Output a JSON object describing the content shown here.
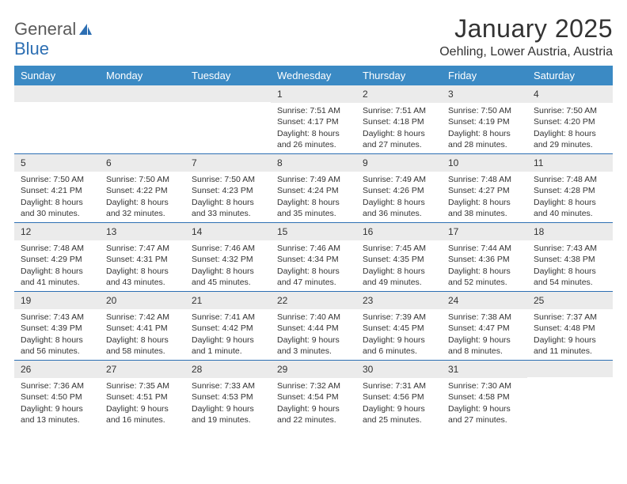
{
  "logo": {
    "text1": "General",
    "text2": "Blue"
  },
  "title": "January 2025",
  "subtitle": "Oehling, Lower Austria, Austria",
  "header_bg": "#3b8ac4",
  "divider_color": "#2d6fb3",
  "daynum_bg": "#ebebeb",
  "days": [
    "Sunday",
    "Monday",
    "Tuesday",
    "Wednesday",
    "Thursday",
    "Friday",
    "Saturday"
  ],
  "weeks": [
    [
      {
        "n": "",
        "sr": "",
        "ss": "",
        "d1": "",
        "d2": ""
      },
      {
        "n": "",
        "sr": "",
        "ss": "",
        "d1": "",
        "d2": ""
      },
      {
        "n": "",
        "sr": "",
        "ss": "",
        "d1": "",
        "d2": ""
      },
      {
        "n": "1",
        "sr": "Sunrise: 7:51 AM",
        "ss": "Sunset: 4:17 PM",
        "d1": "Daylight: 8 hours",
        "d2": "and 26 minutes."
      },
      {
        "n": "2",
        "sr": "Sunrise: 7:51 AM",
        "ss": "Sunset: 4:18 PM",
        "d1": "Daylight: 8 hours",
        "d2": "and 27 minutes."
      },
      {
        "n": "3",
        "sr": "Sunrise: 7:50 AM",
        "ss": "Sunset: 4:19 PM",
        "d1": "Daylight: 8 hours",
        "d2": "and 28 minutes."
      },
      {
        "n": "4",
        "sr": "Sunrise: 7:50 AM",
        "ss": "Sunset: 4:20 PM",
        "d1": "Daylight: 8 hours",
        "d2": "and 29 minutes."
      }
    ],
    [
      {
        "n": "5",
        "sr": "Sunrise: 7:50 AM",
        "ss": "Sunset: 4:21 PM",
        "d1": "Daylight: 8 hours",
        "d2": "and 30 minutes."
      },
      {
        "n": "6",
        "sr": "Sunrise: 7:50 AM",
        "ss": "Sunset: 4:22 PM",
        "d1": "Daylight: 8 hours",
        "d2": "and 32 minutes."
      },
      {
        "n": "7",
        "sr": "Sunrise: 7:50 AM",
        "ss": "Sunset: 4:23 PM",
        "d1": "Daylight: 8 hours",
        "d2": "and 33 minutes."
      },
      {
        "n": "8",
        "sr": "Sunrise: 7:49 AM",
        "ss": "Sunset: 4:24 PM",
        "d1": "Daylight: 8 hours",
        "d2": "and 35 minutes."
      },
      {
        "n": "9",
        "sr": "Sunrise: 7:49 AM",
        "ss": "Sunset: 4:26 PM",
        "d1": "Daylight: 8 hours",
        "d2": "and 36 minutes."
      },
      {
        "n": "10",
        "sr": "Sunrise: 7:48 AM",
        "ss": "Sunset: 4:27 PM",
        "d1": "Daylight: 8 hours",
        "d2": "and 38 minutes."
      },
      {
        "n": "11",
        "sr": "Sunrise: 7:48 AM",
        "ss": "Sunset: 4:28 PM",
        "d1": "Daylight: 8 hours",
        "d2": "and 40 minutes."
      }
    ],
    [
      {
        "n": "12",
        "sr": "Sunrise: 7:48 AM",
        "ss": "Sunset: 4:29 PM",
        "d1": "Daylight: 8 hours",
        "d2": "and 41 minutes."
      },
      {
        "n": "13",
        "sr": "Sunrise: 7:47 AM",
        "ss": "Sunset: 4:31 PM",
        "d1": "Daylight: 8 hours",
        "d2": "and 43 minutes."
      },
      {
        "n": "14",
        "sr": "Sunrise: 7:46 AM",
        "ss": "Sunset: 4:32 PM",
        "d1": "Daylight: 8 hours",
        "d2": "and 45 minutes."
      },
      {
        "n": "15",
        "sr": "Sunrise: 7:46 AM",
        "ss": "Sunset: 4:34 PM",
        "d1": "Daylight: 8 hours",
        "d2": "and 47 minutes."
      },
      {
        "n": "16",
        "sr": "Sunrise: 7:45 AM",
        "ss": "Sunset: 4:35 PM",
        "d1": "Daylight: 8 hours",
        "d2": "and 49 minutes."
      },
      {
        "n": "17",
        "sr": "Sunrise: 7:44 AM",
        "ss": "Sunset: 4:36 PM",
        "d1": "Daylight: 8 hours",
        "d2": "and 52 minutes."
      },
      {
        "n": "18",
        "sr": "Sunrise: 7:43 AM",
        "ss": "Sunset: 4:38 PM",
        "d1": "Daylight: 8 hours",
        "d2": "and 54 minutes."
      }
    ],
    [
      {
        "n": "19",
        "sr": "Sunrise: 7:43 AM",
        "ss": "Sunset: 4:39 PM",
        "d1": "Daylight: 8 hours",
        "d2": "and 56 minutes."
      },
      {
        "n": "20",
        "sr": "Sunrise: 7:42 AM",
        "ss": "Sunset: 4:41 PM",
        "d1": "Daylight: 8 hours",
        "d2": "and 58 minutes."
      },
      {
        "n": "21",
        "sr": "Sunrise: 7:41 AM",
        "ss": "Sunset: 4:42 PM",
        "d1": "Daylight: 9 hours",
        "d2": "and 1 minute."
      },
      {
        "n": "22",
        "sr": "Sunrise: 7:40 AM",
        "ss": "Sunset: 4:44 PM",
        "d1": "Daylight: 9 hours",
        "d2": "and 3 minutes."
      },
      {
        "n": "23",
        "sr": "Sunrise: 7:39 AM",
        "ss": "Sunset: 4:45 PM",
        "d1": "Daylight: 9 hours",
        "d2": "and 6 minutes."
      },
      {
        "n": "24",
        "sr": "Sunrise: 7:38 AM",
        "ss": "Sunset: 4:47 PM",
        "d1": "Daylight: 9 hours",
        "d2": "and 8 minutes."
      },
      {
        "n": "25",
        "sr": "Sunrise: 7:37 AM",
        "ss": "Sunset: 4:48 PM",
        "d1": "Daylight: 9 hours",
        "d2": "and 11 minutes."
      }
    ],
    [
      {
        "n": "26",
        "sr": "Sunrise: 7:36 AM",
        "ss": "Sunset: 4:50 PM",
        "d1": "Daylight: 9 hours",
        "d2": "and 13 minutes."
      },
      {
        "n": "27",
        "sr": "Sunrise: 7:35 AM",
        "ss": "Sunset: 4:51 PM",
        "d1": "Daylight: 9 hours",
        "d2": "and 16 minutes."
      },
      {
        "n": "28",
        "sr": "Sunrise: 7:33 AM",
        "ss": "Sunset: 4:53 PM",
        "d1": "Daylight: 9 hours",
        "d2": "and 19 minutes."
      },
      {
        "n": "29",
        "sr": "Sunrise: 7:32 AM",
        "ss": "Sunset: 4:54 PM",
        "d1": "Daylight: 9 hours",
        "d2": "and 22 minutes."
      },
      {
        "n": "30",
        "sr": "Sunrise: 7:31 AM",
        "ss": "Sunset: 4:56 PM",
        "d1": "Daylight: 9 hours",
        "d2": "and 25 minutes."
      },
      {
        "n": "31",
        "sr": "Sunrise: 7:30 AM",
        "ss": "Sunset: 4:58 PM",
        "d1": "Daylight: 9 hours",
        "d2": "and 27 minutes."
      },
      {
        "n": "",
        "sr": "",
        "ss": "",
        "d1": "",
        "d2": ""
      }
    ]
  ]
}
